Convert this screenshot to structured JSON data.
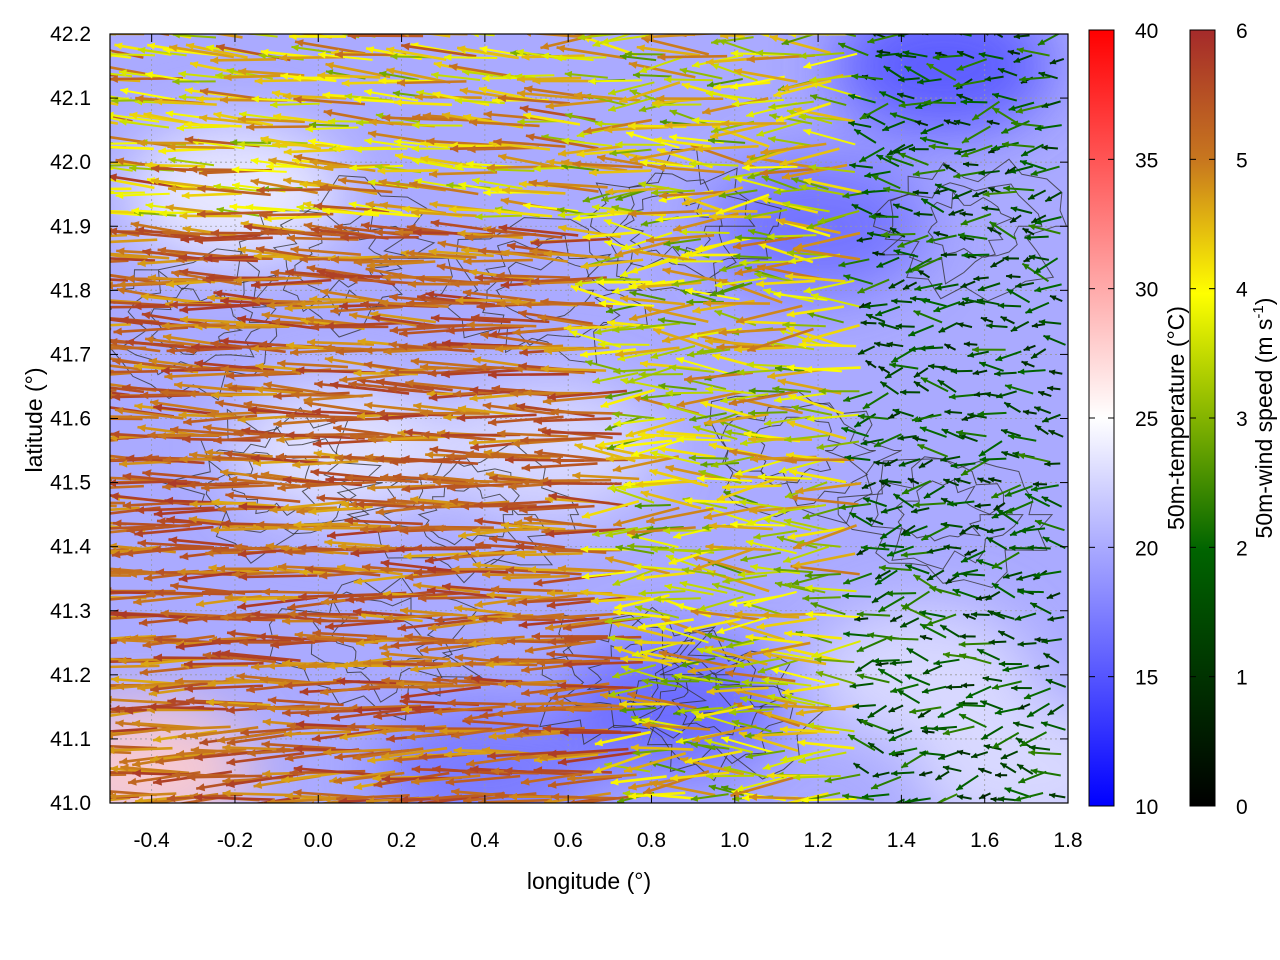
{
  "chart_data": {
    "type": "heatmap",
    "subtype": "temperature field with wind vectors and terrain contours",
    "xlabel": "longitude (°)",
    "ylabel": "latitude (°)",
    "xlim": [
      -0.5,
      1.8
    ],
    "ylim": [
      41.0,
      42.2
    ],
    "x_ticks": [
      "-0.4",
      "-0.2",
      "0.0",
      "0.2",
      "0.4",
      "0.6",
      "0.8",
      "1.0",
      "1.2",
      "1.4",
      "1.6",
      "1.8"
    ],
    "y_ticks": [
      "41.0",
      "41.1",
      "41.2",
      "41.3",
      "41.4",
      "41.5",
      "41.6",
      "41.7",
      "41.8",
      "41.9",
      "42.0",
      "42.1",
      "42.2"
    ],
    "grid": true,
    "colorbars": [
      {
        "label": "50m-temperature (°C)",
        "range": [
          10,
          40
        ],
        "ticks": [
          "10",
          "15",
          "20",
          "25",
          "30",
          "35",
          "40"
        ],
        "colors": [
          "#0000ff",
          "#ffffff",
          "#ff0000"
        ]
      },
      {
        "label_text": "50m-wind speed (m s",
        "label_sup": "-1",
        "label_end": ")",
        "range": [
          0,
          6
        ],
        "ticks": [
          "0",
          "1",
          "2",
          "3",
          "4",
          "5",
          "6"
        ],
        "colors": [
          "#000000",
          "#006400",
          "#ffff00",
          "#c8781e",
          "#a52a2a"
        ]
      }
    ],
    "temperature_field": {
      "background_c": 20,
      "warm_regions": [
        {
          "lon": -0.42,
          "lat": 41.05,
          "temp": 28
        },
        {
          "lon": -0.2,
          "lat": 41.95,
          "temp": 24
        },
        {
          "lon": 0.05,
          "lat": 41.55,
          "temp": 23.5
        },
        {
          "lon": 0.55,
          "lat": 41.55,
          "temp": 23
        },
        {
          "lon": 1.45,
          "lat": 41.2,
          "temp": 23
        },
        {
          "lon": 1.7,
          "lat": 41.05,
          "temp": 23
        }
      ],
      "cool_regions": [
        {
          "lon": 1.5,
          "lat": 42.15,
          "temp": 15
        },
        {
          "lon": 0.85,
          "lat": 41.15,
          "temp": 16
        },
        {
          "lon": 1.2,
          "lat": 41.9,
          "temp": 16.5
        },
        {
          "lon": 0.4,
          "lat": 41.05,
          "temp": 17
        }
      ]
    },
    "wind_field_description": {
      "west": {
        "lon_range": [
          -0.5,
          0.8
        ],
        "speed_ms": 5.8,
        "direction": "from east (arrows point west)"
      },
      "central": {
        "lon_range": [
          0.6,
          1.3
        ],
        "speed_ms": 3.8,
        "direction": "from east"
      },
      "east": {
        "lon_range": [
          1.3,
          1.8
        ],
        "speed_ms": 1.5,
        "direction": "weak, variable"
      }
    }
  }
}
